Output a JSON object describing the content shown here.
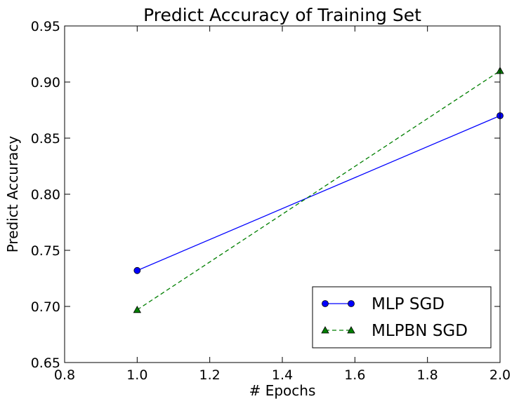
{
  "chart_data": {
    "type": "line",
    "title": "Predict Accuracy of Training Set",
    "xlabel": "# Epochs",
    "ylabel": "Predict Accuracy",
    "xlim": [
      0.8,
      2.0
    ],
    "ylim": [
      0.65,
      0.95
    ],
    "xticks": [
      "0.8",
      "1.0",
      "1.2",
      "1.4",
      "1.6",
      "1.8",
      "2.0"
    ],
    "yticks": [
      "0.65",
      "0.70",
      "0.75",
      "0.80",
      "0.85",
      "0.90",
      "0.95"
    ],
    "grid": false,
    "legend_position": "lower-right",
    "series": [
      {
        "name": "MLP SGD",
        "x": [
          1.0,
          2.0
        ],
        "y": [
          0.732,
          0.87
        ],
        "color": "#0000ff",
        "line_style": "solid",
        "marker": "circle"
      },
      {
        "name": "MLPBN SGD",
        "x": [
          1.0,
          2.0
        ],
        "y": [
          0.697,
          0.91
        ],
        "color": "#007f00",
        "line_style": "dashed",
        "marker": "triangle"
      }
    ]
  }
}
